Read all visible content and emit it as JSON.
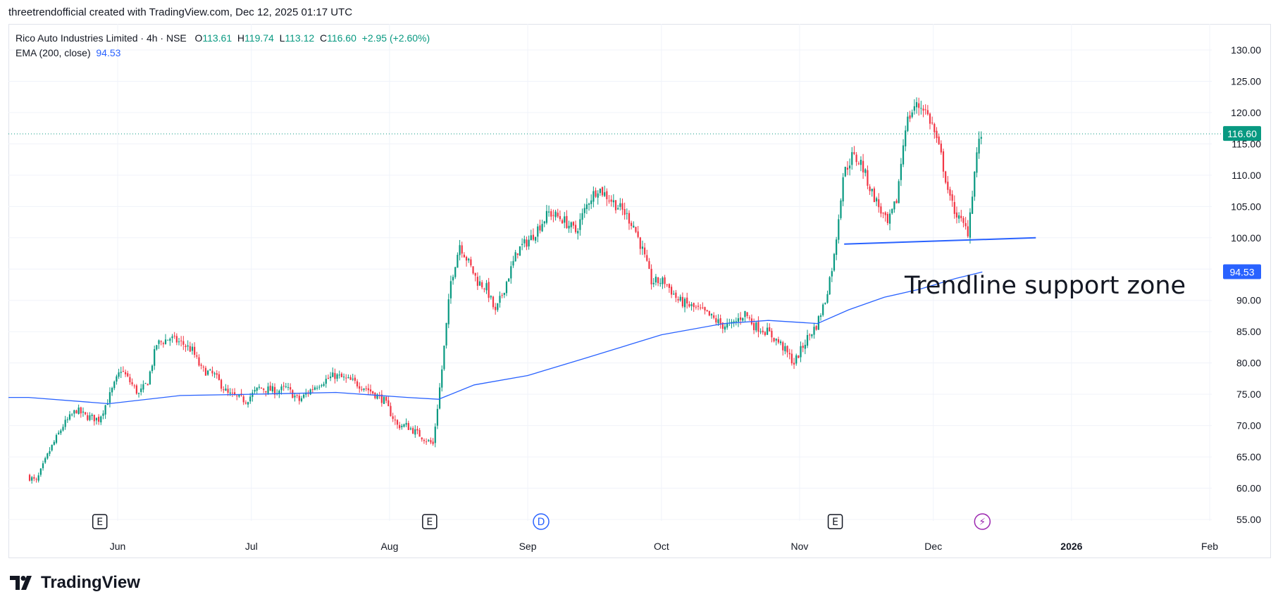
{
  "header": {
    "attribution": "threetrendofficial created with TradingView.com, Dec 12, 2025 01:17 UTC"
  },
  "legend": {
    "symbol": "Rico Auto Industries Limited · 4h · NSE",
    "open_label": "O",
    "open": "113.61",
    "high_label": "H",
    "high": "119.74",
    "low_label": "L",
    "low": "113.12",
    "close_label": "C",
    "close": "116.60",
    "change": "+2.95 (+2.60%)",
    "indicator": "EMA (200, close)",
    "indicator_value": "94.53"
  },
  "badges": {
    "last_price": "116.60",
    "ema": "94.53"
  },
  "annotation": {
    "text": "Trendline support zone"
  },
  "event_markers": [
    {
      "month": "May",
      "day": 28,
      "glyph": "E"
    },
    {
      "month": "Aug",
      "day": 10,
      "glyph": "E"
    },
    {
      "month": "Sep",
      "day": 4,
      "glyph": "D"
    },
    {
      "month": "Nov",
      "day": 9,
      "glyph": "E"
    },
    {
      "month": "Dec",
      "day": 12,
      "glyph": "⚡"
    }
  ],
  "colors": {
    "up": "#089981",
    "down": "#f23645",
    "ema": "#2962ff",
    "trendline": "#2962ff",
    "grid": "#f0f3fa",
    "event_blue": "#2962ff",
    "event_purple": "#9c27b0"
  },
  "footer": {
    "brand": "TradingView"
  },
  "chart_data": {
    "type": "candlestick",
    "title": "Rico Auto Industries Limited · 4h · NSE",
    "xlabel": "",
    "ylabel": "",
    "ylim": [
      55,
      130
    ],
    "y_ticks": [
      "130.00",
      "125.00",
      "120.00",
      "115.00",
      "110.00",
      "105.00",
      "100.00",
      "95.00",
      "90.00",
      "85.00",
      "80.00",
      "75.00",
      "70.00",
      "65.00",
      "60.00",
      "55.00"
    ],
    "x_ticks": [
      {
        "label": "Jun",
        "date": "2025-06-01"
      },
      {
        "label": "Jul",
        "date": "2025-07-01"
      },
      {
        "label": "Aug",
        "date": "2025-08-01"
      },
      {
        "label": "Sep",
        "date": "2025-09-01"
      },
      {
        "label": "Oct",
        "date": "2025-10-01"
      },
      {
        "label": "Nov",
        "date": "2025-11-01"
      },
      {
        "label": "Dec",
        "date": "2025-12-01"
      },
      {
        "label": "2026",
        "date": "2026-01-01"
      },
      {
        "label": "Feb",
        "date": "2026-02-01"
      }
    ],
    "price_path": [
      [
        "2025-05-12",
        62
      ],
      [
        "2025-05-14",
        61
      ],
      [
        "2025-05-17",
        66
      ],
      [
        "2025-05-20",
        70
      ],
      [
        "2025-05-23",
        72.5
      ],
      [
        "2025-05-25",
        71.5
      ],
      [
        "2025-05-28",
        71
      ],
      [
        "2025-05-30",
        74
      ],
      [
        "2025-06-02",
        79
      ],
      [
        "2025-06-04",
        77
      ],
      [
        "2025-06-06",
        75
      ],
      [
        "2025-06-08",
        77
      ],
      [
        "2025-06-10",
        83
      ],
      [
        "2025-06-13",
        84
      ],
      [
        "2025-06-16",
        83
      ],
      [
        "2025-06-18",
        82
      ],
      [
        "2025-06-20",
        79
      ],
      [
        "2025-06-23",
        78
      ],
      [
        "2025-06-26",
        75
      ],
      [
        "2025-06-30",
        74
      ],
      [
        "2025-07-03",
        76
      ],
      [
        "2025-07-07",
        75.5
      ],
      [
        "2025-07-09",
        76
      ],
      [
        "2025-07-12",
        74
      ],
      [
        "2025-07-15",
        76
      ],
      [
        "2025-07-17",
        77
      ],
      [
        "2025-07-20",
        78
      ],
      [
        "2025-07-24",
        77
      ],
      [
        "2025-07-27",
        76
      ],
      [
        "2025-07-31",
        74
      ],
      [
        "2025-08-03",
        70
      ],
      [
        "2025-08-05",
        70
      ],
      [
        "2025-08-07",
        69
      ],
      [
        "2025-08-09",
        68
      ],
      [
        "2025-08-11",
        67
      ],
      [
        "2025-08-13",
        79
      ],
      [
        "2025-08-15",
        93
      ],
      [
        "2025-08-17",
        99
      ],
      [
        "2025-08-19",
        96
      ],
      [
        "2025-08-21",
        93
      ],
      [
        "2025-08-23",
        92
      ],
      [
        "2025-08-25",
        88
      ],
      [
        "2025-08-27",
        92
      ],
      [
        "2025-08-30",
        98
      ],
      [
        "2025-09-02",
        100
      ],
      [
        "2025-09-04",
        102
      ],
      [
        "2025-09-06",
        104
      ],
      [
        "2025-09-09",
        103
      ],
      [
        "2025-09-12",
        101
      ],
      [
        "2025-09-15",
        106
      ],
      [
        "2025-09-17",
        108
      ],
      [
        "2025-09-20",
        106
      ],
      [
        "2025-09-23",
        104
      ],
      [
        "2025-09-25",
        102
      ],
      [
        "2025-09-27",
        98
      ],
      [
        "2025-09-29",
        93
      ],
      [
        "2025-10-02",
        93
      ],
      [
        "2025-10-05",
        90
      ],
      [
        "2025-10-08",
        89
      ],
      [
        "2025-10-11",
        88
      ],
      [
        "2025-10-15",
        86
      ],
      [
        "2025-10-17",
        86
      ],
      [
        "2025-10-20",
        88
      ],
      [
        "2025-10-22",
        86
      ],
      [
        "2025-10-25",
        85
      ],
      [
        "2025-10-28",
        83
      ],
      [
        "2025-10-31",
        80
      ],
      [
        "2025-11-03",
        84
      ],
      [
        "2025-11-05",
        86
      ],
      [
        "2025-11-07",
        90
      ],
      [
        "2025-11-09",
        97
      ],
      [
        "2025-11-11",
        110
      ],
      [
        "2025-11-13",
        113
      ],
      [
        "2025-11-15",
        112
      ],
      [
        "2025-11-17",
        108
      ],
      [
        "2025-11-19",
        105
      ],
      [
        "2025-11-21",
        102
      ],
      [
        "2025-11-23",
        106
      ],
      [
        "2025-11-25",
        118
      ],
      [
        "2025-11-27",
        121
      ],
      [
        "2025-11-29",
        121
      ],
      [
        "2025-12-01",
        118
      ],
      [
        "2025-12-03",
        113
      ],
      [
        "2025-12-05",
        106
      ],
      [
        "2025-12-07",
        103
      ],
      [
        "2025-12-09",
        101
      ],
      [
        "2025-12-11",
        113.61
      ],
      [
        "2025-12-12",
        116.6
      ]
    ],
    "ema_path": [
      [
        "2025-05-12",
        74.5
      ],
      [
        "2025-05-30",
        73.5
      ],
      [
        "2025-06-15",
        74.8
      ],
      [
        "2025-07-01",
        75
      ],
      [
        "2025-07-20",
        75.3
      ],
      [
        "2025-08-05",
        74.5
      ],
      [
        "2025-08-12",
        74.2
      ],
      [
        "2025-08-20",
        76.5
      ],
      [
        "2025-09-01",
        78
      ],
      [
        "2025-09-15",
        81
      ],
      [
        "2025-10-01",
        84.5
      ],
      [
        "2025-10-15",
        86.3
      ],
      [
        "2025-10-25",
        86.8
      ],
      [
        "2025-11-05",
        86.3
      ],
      [
        "2025-11-12",
        88.5
      ],
      [
        "2025-11-20",
        90.5
      ],
      [
        "2025-11-28",
        91.8
      ],
      [
        "2025-12-06",
        93.5
      ],
      [
        "2025-12-12",
        94.53
      ]
    ],
    "trendline": {
      "start": [
        "2025-11-11",
        99
      ],
      "end": [
        "2025-12-24",
        100
      ]
    },
    "last_price": 116.6,
    "ema_last": 94.53,
    "series": [
      {
        "name": "Rico Auto Industries Limited",
        "kind": "candles",
        "last_open": 113.61,
        "last_high": 119.74,
        "last_low": 113.12,
        "last_close": 116.6
      },
      {
        "name": "EMA (200, close)",
        "kind": "line",
        "last": 94.53
      }
    ]
  }
}
